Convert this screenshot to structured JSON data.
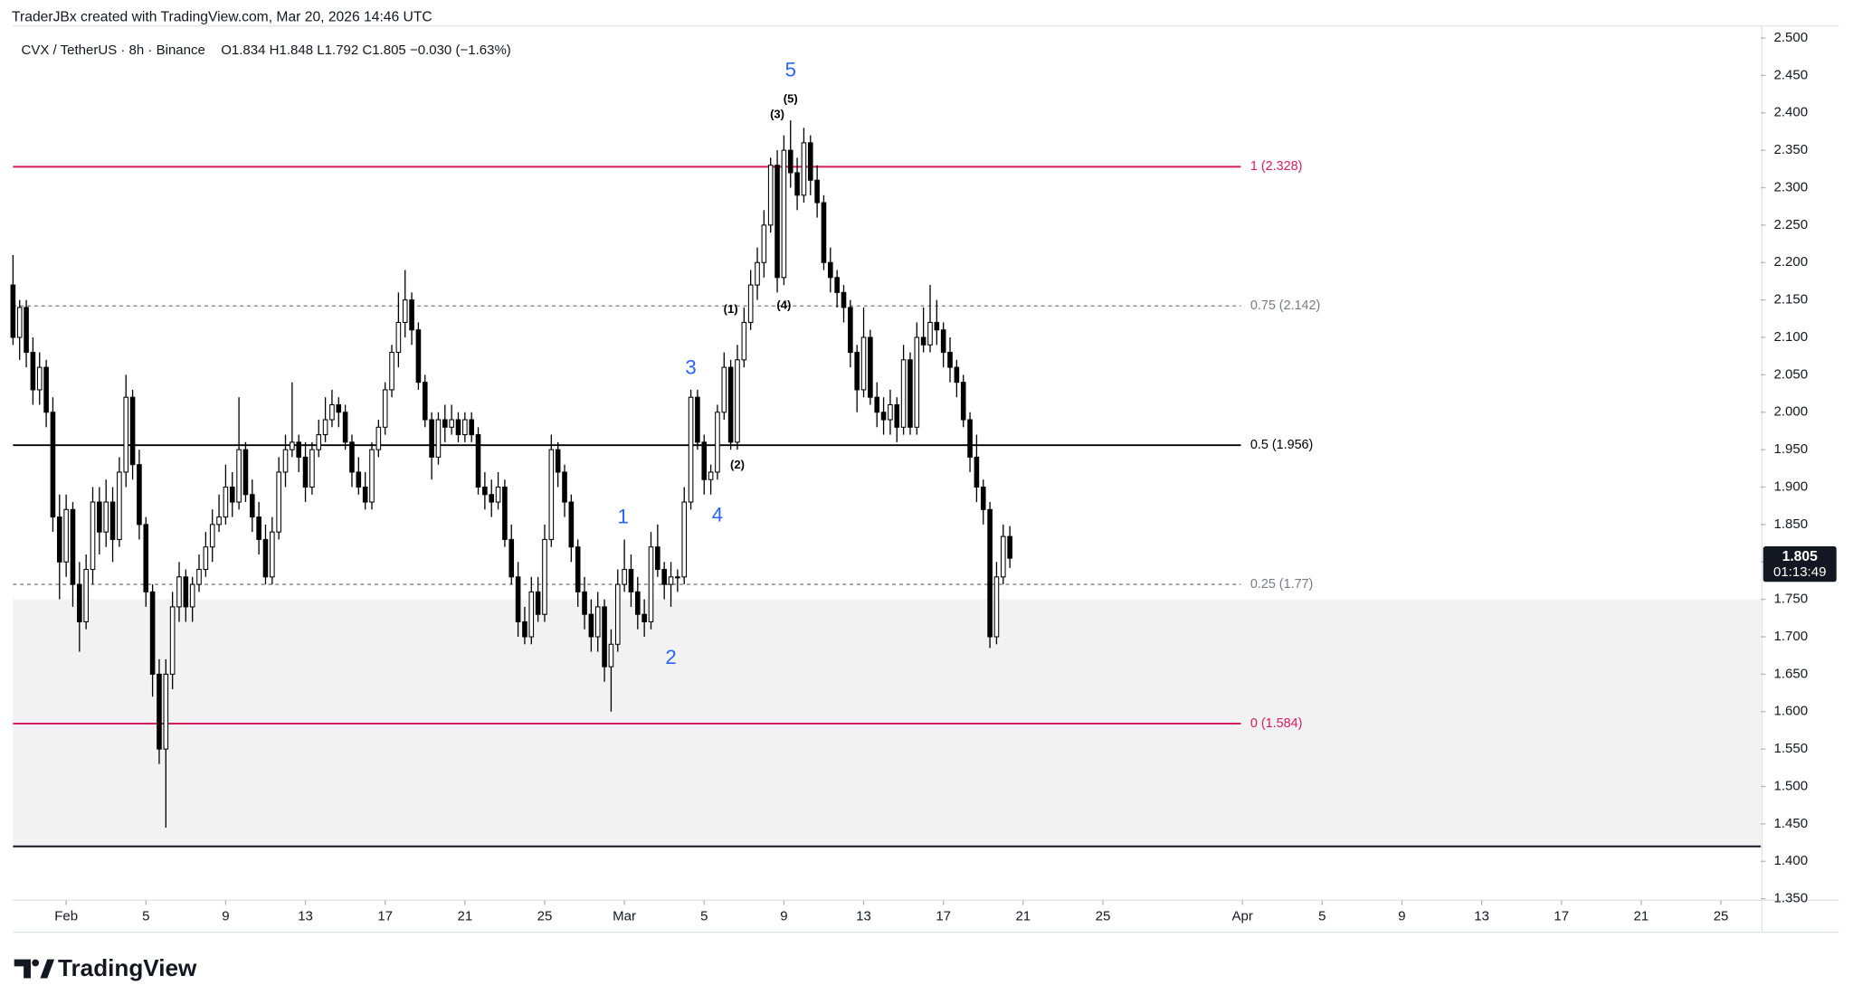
{
  "chart_data": {
    "type": "candlestick",
    "header": "TraderJBx created with TradingView.com, Mar 20, 2026 14:46 UTC",
    "symbol": "CVX / TetherUS · 8h · Binance",
    "ohlc_text": "O1.834 H1.848 L1.792 C1.805 −0.030 (−1.63%)",
    "countdown": "01:13:49",
    "brand": "TradingView",
    "up_color": "#ffffff",
    "down_color": "#000000",
    "ylim": [
      1.348,
      2.516
    ],
    "xlim": [
      0,
      263
    ],
    "yticks": [
      {
        "value": 2.5,
        "label": "2.500"
      },
      {
        "value": 2.45,
        "label": "2.450"
      },
      {
        "value": 2.4,
        "label": "2.400"
      },
      {
        "value": 2.35,
        "label": "2.350"
      },
      {
        "value": 2.3,
        "label": "2.300"
      },
      {
        "value": 2.25,
        "label": "2.250"
      },
      {
        "value": 2.2,
        "label": "2.200"
      },
      {
        "value": 2.15,
        "label": "2.150"
      },
      {
        "value": 2.1,
        "label": "2.100"
      },
      {
        "value": 2.05,
        "label": "2.050"
      },
      {
        "value": 2.0,
        "label": "2.000"
      },
      {
        "value": 1.95,
        "label": "1.950"
      },
      {
        "value": 1.9,
        "label": "1.900"
      },
      {
        "value": 1.85,
        "label": "1.850"
      },
      {
        "value": 1.8,
        "label": "1.800"
      },
      {
        "value": 1.75,
        "label": "1.750"
      },
      {
        "value": 1.7,
        "label": "1.700"
      },
      {
        "value": 1.65,
        "label": "1.650"
      },
      {
        "value": 1.6,
        "label": "1.600"
      },
      {
        "value": 1.55,
        "label": "1.550"
      },
      {
        "value": 1.5,
        "label": "1.500"
      },
      {
        "value": 1.45,
        "label": "1.450"
      },
      {
        "value": 1.4,
        "label": "1.400"
      },
      {
        "value": 1.35,
        "label": "1.350"
      }
    ],
    "xticks": [
      {
        "value": 8,
        "label": "Feb"
      },
      {
        "value": 20,
        "label": "5"
      },
      {
        "value": 32,
        "label": "9"
      },
      {
        "value": 44,
        "label": "13"
      },
      {
        "value": 56,
        "label": "17"
      },
      {
        "value": 68,
        "label": "21"
      },
      {
        "value": 80,
        "label": "25"
      },
      {
        "value": 92,
        "label": "Mar"
      },
      {
        "value": 104,
        "label": "5"
      },
      {
        "value": 116,
        "label": "9"
      },
      {
        "value": 128,
        "label": "13"
      },
      {
        "value": 140,
        "label": "17"
      },
      {
        "value": 152,
        "label": "21"
      },
      {
        "value": 164,
        "label": "25"
      },
      {
        "value": 185,
        "label": "Apr"
      },
      {
        "value": 197,
        "label": "5"
      },
      {
        "value": 209,
        "label": "9"
      },
      {
        "value": 221,
        "label": "13"
      },
      {
        "value": 233,
        "label": "17"
      },
      {
        "value": 245,
        "label": "21"
      },
      {
        "value": 257,
        "label": "25"
      }
    ],
    "fib_levels": [
      {
        "value": 2.328,
        "label": "1 (2.328)",
        "color": "#d81b60",
        "dashed": false
      },
      {
        "value": 2.142,
        "label": "0.75 (2.142)",
        "color": "#787b86",
        "dashed": true
      },
      {
        "value": 1.956,
        "label": "0.5 (1.956)",
        "color": "#000000",
        "dashed": false
      },
      {
        "value": 1.77,
        "label": "0.25 (1.77)",
        "color": "#787b86",
        "dashed": true
      },
      {
        "value": 1.584,
        "label": "0 (1.584)",
        "color": "#d81b60",
        "dashed": false
      }
    ],
    "zone": {
      "top": 1.75,
      "bottom": 1.42,
      "color": "#f2f2f2"
    },
    "horizontal_line": {
      "value": 1.42,
      "color": "#131722"
    },
    "waves": [
      {
        "label": "1",
        "candle": 91.8,
        "price": 1.859,
        "color": "#2962ff",
        "major": true
      },
      {
        "label": "2",
        "candle": 99,
        "price": 1.671,
        "color": "#2962ff",
        "major": true
      },
      {
        "label": "3",
        "candle": 102,
        "price": 2.058,
        "color": "#2962ff",
        "major": true
      },
      {
        "label": "4",
        "candle": 106,
        "price": 1.861,
        "color": "#2962ff",
        "major": true
      },
      {
        "label": "5",
        "candle": 117,
        "price": 2.456,
        "color": "#2962ff",
        "major": true
      },
      {
        "label": "(1)",
        "candle": 108,
        "price": 2.137,
        "color": "#000000",
        "major": false
      },
      {
        "label": "(2)",
        "candle": 109,
        "price": 1.929,
        "color": "#000000",
        "major": false
      },
      {
        "label": "(3)",
        "candle": 115,
        "price": 2.397,
        "color": "#000000",
        "major": false
      },
      {
        "label": "(4)",
        "candle": 116,
        "price": 2.142,
        "color": "#000000",
        "major": false
      },
      {
        "label": "(5)",
        "candle": 117,
        "price": 2.418,
        "color": "#000000",
        "major": false
      }
    ],
    "candles": [
      [
        2.17,
        2.21,
        2.09,
        2.1
      ],
      [
        2.1,
        2.15,
        2.07,
        2.14
      ],
      [
        2.14,
        2.15,
        2.06,
        2.08
      ],
      [
        2.08,
        2.1,
        2.01,
        2.03
      ],
      [
        2.03,
        2.08,
        2.01,
        2.06
      ],
      [
        2.06,
        2.07,
        1.98,
        2.0
      ],
      [
        2.0,
        2.02,
        1.84,
        1.86
      ],
      [
        1.86,
        1.89,
        1.75,
        1.8
      ],
      [
        1.8,
        1.89,
        1.78,
        1.87
      ],
      [
        1.87,
        1.88,
        1.74,
        1.77
      ],
      [
        1.77,
        1.8,
        1.68,
        1.72
      ],
      [
        1.72,
        1.81,
        1.71,
        1.79
      ],
      [
        1.79,
        1.9,
        1.77,
        1.88
      ],
      [
        1.88,
        1.9,
        1.81,
        1.84
      ],
      [
        1.84,
        1.91,
        1.82,
        1.88
      ],
      [
        1.88,
        1.9,
        1.8,
        1.83
      ],
      [
        1.83,
        1.94,
        1.82,
        1.92
      ],
      [
        1.92,
        2.05,
        1.9,
        2.02
      ],
      [
        2.02,
        2.03,
        1.91,
        1.93
      ],
      [
        1.93,
        1.95,
        1.83,
        1.85
      ],
      [
        1.85,
        1.86,
        1.74,
        1.76
      ],
      [
        1.76,
        1.77,
        1.62,
        1.65
      ],
      [
        1.65,
        1.67,
        1.53,
        1.55
      ],
      [
        1.55,
        1.67,
        1.445,
        1.65
      ],
      [
        1.65,
        1.76,
        1.63,
        1.74
      ],
      [
        1.74,
        1.8,
        1.72,
        1.78
      ],
      [
        1.78,
        1.79,
        1.72,
        1.74
      ],
      [
        1.74,
        1.78,
        1.72,
        1.77
      ],
      [
        1.77,
        1.81,
        1.76,
        1.79
      ],
      [
        1.79,
        1.84,
        1.78,
        1.82
      ],
      [
        1.82,
        1.87,
        1.8,
        1.85
      ],
      [
        1.85,
        1.89,
        1.84,
        1.86
      ],
      [
        1.86,
        1.93,
        1.85,
        1.9
      ],
      [
        1.9,
        1.92,
        1.86,
        1.88
      ],
      [
        1.88,
        2.02,
        1.87,
        1.95
      ],
      [
        1.95,
        1.96,
        1.88,
        1.89
      ],
      [
        1.89,
        1.91,
        1.84,
        1.86
      ],
      [
        1.86,
        1.88,
        1.81,
        1.83
      ],
      [
        1.83,
        1.85,
        1.77,
        1.78
      ],
      [
        1.78,
        1.86,
        1.77,
        1.84
      ],
      [
        1.84,
        1.94,
        1.83,
        1.92
      ],
      [
        1.92,
        1.97,
        1.9,
        1.95
      ],
      [
        1.95,
        2.04,
        1.94,
        1.96
      ],
      [
        1.96,
        1.97,
        1.92,
        1.94
      ],
      [
        1.94,
        1.96,
        1.88,
        1.9
      ],
      [
        1.9,
        1.96,
        1.89,
        1.95
      ],
      [
        1.95,
        1.99,
        1.94,
        1.97
      ],
      [
        1.97,
        2.02,
        1.96,
        1.99
      ],
      [
        1.99,
        2.03,
        1.98,
        2.01
      ],
      [
        2.01,
        2.02,
        1.98,
        2.0
      ],
      [
        2.0,
        2.01,
        1.95,
        1.96
      ],
      [
        1.96,
        1.97,
        1.9,
        1.92
      ],
      [
        1.92,
        1.94,
        1.89,
        1.9
      ],
      [
        1.9,
        1.92,
        1.87,
        1.88
      ],
      [
        1.88,
        1.96,
        1.87,
        1.95
      ],
      [
        1.95,
        1.99,
        1.94,
        1.98
      ],
      [
        1.98,
        2.04,
        1.97,
        2.03
      ],
      [
        2.03,
        2.09,
        2.02,
        2.08
      ],
      [
        2.08,
        2.16,
        2.06,
        2.12
      ],
      [
        2.12,
        2.19,
        2.1,
        2.15
      ],
      [
        2.15,
        2.16,
        2.09,
        2.11
      ],
      [
        2.11,
        2.12,
        2.03,
        2.04
      ],
      [
        2.04,
        2.05,
        1.98,
        1.99
      ],
      [
        1.99,
        2.0,
        1.91,
        1.94
      ],
      [
        1.94,
        2.0,
        1.93,
        1.99
      ],
      [
        1.99,
        2.01,
        1.96,
        1.98
      ],
      [
        1.98,
        2.01,
        1.97,
        1.99
      ],
      [
        1.99,
        2.0,
        1.96,
        1.97
      ],
      [
        1.97,
        2.0,
        1.96,
        1.99
      ],
      [
        1.99,
        2.0,
        1.96,
        1.97
      ],
      [
        1.97,
        1.98,
        1.89,
        1.9
      ],
      [
        1.9,
        1.92,
        1.87,
        1.89
      ],
      [
        1.89,
        1.91,
        1.86,
        1.88
      ],
      [
        1.88,
        1.92,
        1.87,
        1.9
      ],
      [
        1.9,
        1.91,
        1.82,
        1.83
      ],
      [
        1.83,
        1.85,
        1.77,
        1.78
      ],
      [
        1.78,
        1.8,
        1.7,
        1.72
      ],
      [
        1.72,
        1.74,
        1.69,
        1.7
      ],
      [
        1.7,
        1.78,
        1.69,
        1.76
      ],
      [
        1.76,
        1.78,
        1.72,
        1.73
      ],
      [
        1.73,
        1.85,
        1.72,
        1.83
      ],
      [
        1.83,
        1.97,
        1.82,
        1.95
      ],
      [
        1.95,
        1.96,
        1.9,
        1.92
      ],
      [
        1.92,
        1.93,
        1.86,
        1.88
      ],
      [
        1.88,
        1.89,
        1.8,
        1.82
      ],
      [
        1.82,
        1.83,
        1.74,
        1.76
      ],
      [
        1.76,
        1.78,
        1.71,
        1.73
      ],
      [
        1.73,
        1.75,
        1.68,
        1.7
      ],
      [
        1.7,
        1.76,
        1.68,
        1.74
      ],
      [
        1.74,
        1.75,
        1.64,
        1.66
      ],
      [
        1.66,
        1.71,
        1.6,
        1.69
      ],
      [
        1.69,
        1.79,
        1.68,
        1.77
      ],
      [
        1.77,
        1.83,
        1.76,
        1.79
      ],
      [
        1.79,
        1.81,
        1.74,
        1.76
      ],
      [
        1.76,
        1.78,
        1.71,
        1.73
      ],
      [
        1.73,
        1.75,
        1.7,
        1.72
      ],
      [
        1.72,
        1.84,
        1.71,
        1.82
      ],
      [
        1.82,
        1.85,
        1.78,
        1.79
      ],
      [
        1.79,
        1.8,
        1.75,
        1.77
      ],
      [
        1.77,
        1.8,
        1.74,
        1.78
      ],
      [
        1.78,
        1.79,
        1.76,
        1.78
      ],
      [
        1.78,
        1.9,
        1.77,
        1.88
      ],
      [
        1.88,
        2.03,
        1.87,
        2.02
      ],
      [
        2.02,
        2.03,
        1.95,
        1.96
      ],
      [
        1.96,
        1.97,
        1.89,
        1.91
      ],
      [
        1.91,
        1.93,
        1.89,
        1.92
      ],
      [
        1.92,
        2.01,
        1.91,
        2.0
      ],
      [
        2.0,
        2.08,
        1.99,
        2.06
      ],
      [
        2.06,
        2.07,
        1.95,
        1.96
      ],
      [
        1.96,
        2.09,
        1.95,
        2.07
      ],
      [
        2.07,
        2.14,
        2.06,
        2.12
      ],
      [
        2.12,
        2.19,
        2.11,
        2.17
      ],
      [
        2.17,
        2.22,
        2.15,
        2.2
      ],
      [
        2.2,
        2.27,
        2.18,
        2.25
      ],
      [
        2.25,
        2.34,
        2.24,
        2.33
      ],
      [
        2.33,
        2.35,
        2.16,
        2.18
      ],
      [
        2.18,
        2.37,
        2.17,
        2.35
      ],
      [
        2.35,
        2.39,
        2.3,
        2.32
      ],
      [
        2.32,
        2.34,
        2.27,
        2.29
      ],
      [
        2.29,
        2.38,
        2.28,
        2.36
      ],
      [
        2.36,
        2.37,
        2.29,
        2.31
      ],
      [
        2.31,
        2.33,
        2.26,
        2.28
      ],
      [
        2.28,
        2.29,
        2.19,
        2.2
      ],
      [
        2.2,
        2.22,
        2.16,
        2.18
      ],
      [
        2.18,
        2.19,
        2.14,
        2.16
      ],
      [
        2.16,
        2.17,
        2.12,
        2.14
      ],
      [
        2.14,
        2.15,
        2.06,
        2.08
      ],
      [
        2.08,
        2.09,
        2.0,
        2.03
      ],
      [
        2.03,
        2.14,
        2.02,
        2.1
      ],
      [
        2.1,
        2.11,
        2.01,
        2.02
      ],
      [
        2.02,
        2.04,
        1.98,
        2.0
      ],
      [
        2.0,
        2.02,
        1.97,
        1.99
      ],
      [
        1.99,
        2.03,
        1.97,
        2.01
      ],
      [
        2.01,
        2.02,
        1.96,
        1.98
      ],
      [
        1.98,
        2.09,
        1.97,
        2.07
      ],
      [
        2.07,
        2.08,
        1.97,
        1.98
      ],
      [
        1.98,
        2.12,
        1.97,
        2.1
      ],
      [
        2.1,
        2.14,
        2.08,
        2.09
      ],
      [
        2.09,
        2.17,
        2.08,
        2.12
      ],
      [
        2.12,
        2.15,
        2.09,
        2.11
      ],
      [
        2.11,
        2.12,
        2.06,
        2.08
      ],
      [
        2.08,
        2.1,
        2.04,
        2.06
      ],
      [
        2.06,
        2.07,
        2.02,
        2.04
      ],
      [
        2.04,
        2.05,
        1.98,
        1.99
      ],
      [
        1.99,
        2.0,
        1.92,
        1.94
      ],
      [
        1.94,
        1.97,
        1.88,
        1.9
      ],
      [
        1.9,
        1.91,
        1.85,
        1.87
      ],
      [
        1.87,
        1.88,
        1.685,
        1.7
      ],
      [
        1.7,
        1.8,
        1.69,
        1.78
      ],
      [
        1.78,
        1.85,
        1.77,
        1.834
      ],
      [
        1.834,
        1.848,
        1.792,
        1.805
      ]
    ]
  }
}
